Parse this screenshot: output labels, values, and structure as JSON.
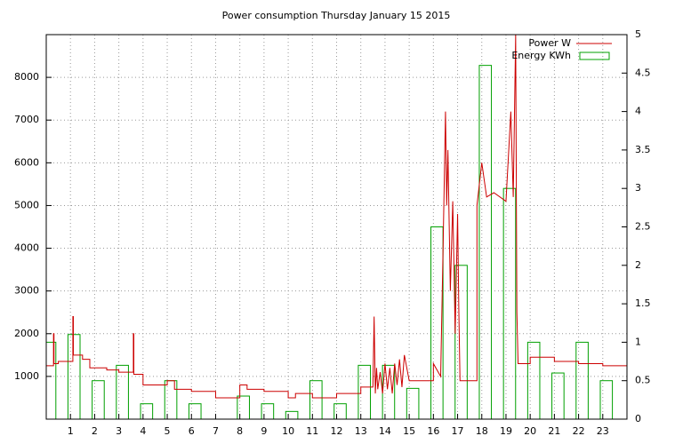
{
  "chart_data": {
    "type": "combo",
    "title": "Power consumption Thursday January 15 2015",
    "xlim": [
      0,
      24
    ],
    "xticks": [
      1,
      2,
      3,
      4,
      5,
      6,
      7,
      8,
      9,
      10,
      11,
      12,
      13,
      14,
      15,
      16,
      17,
      18,
      19,
      20,
      21,
      22,
      23
    ],
    "ylim": [
      0,
      9000
    ],
    "yticks": [
      1000,
      2000,
      3000,
      4000,
      5000,
      6000,
      7000,
      8000
    ],
    "y2lim": [
      0,
      5
    ],
    "y2ticks": [
      0,
      0.5,
      1,
      1.5,
      2,
      2.5,
      3,
      3.5,
      4,
      4.5,
      5
    ],
    "grid": true,
    "legend": "top-right",
    "series": [
      {
        "name": "Power W",
        "color": "#cc0000",
        "type": "line",
        "x": [
          0,
          0.3,
          0.3,
          0.32,
          0.32,
          0.5,
          0.5,
          1.1,
          1.1,
          1.12,
          1.12,
          1.5,
          1.5,
          1.8,
          1.8,
          2.5,
          2.5,
          3,
          3,
          3.6,
          3.6,
          3.62,
          3.62,
          4,
          4,
          5,
          5,
          5.3,
          5.3,
          6,
          6,
          7,
          7,
          8,
          8,
          8.3,
          8.3,
          9,
          9,
          10,
          10,
          10.3,
          10.3,
          11,
          11,
          12,
          12,
          13,
          13,
          13.5,
          13.55,
          13.6,
          13.65,
          13.7,
          13.8,
          13.9,
          14,
          14.1,
          14.2,
          14.3,
          14.4,
          14.5,
          14.6,
          14.7,
          14.8,
          15,
          16,
          16,
          16.3,
          16.4,
          16.5,
          16.55,
          16.6,
          16.7,
          16.8,
          16.9,
          17,
          17.05,
          17.1,
          17.8,
          17.8,
          18,
          18.2,
          18.5,
          19,
          19.2,
          19.3,
          19.4,
          19.45,
          19.5,
          20,
          20,
          21,
          21,
          22,
          22,
          23,
          23,
          24
        ],
        "values": [
          1250,
          1250,
          2000,
          2000,
          1300,
          1300,
          1350,
          1350,
          2400,
          2400,
          1500,
          1500,
          1400,
          1400,
          1200,
          1200,
          1150,
          1150,
          1100,
          1100,
          2000,
          2000,
          1050,
          1050,
          800,
          800,
          900,
          900,
          700,
          700,
          650,
          650,
          500,
          500,
          800,
          800,
          700,
          700,
          650,
          650,
          500,
          500,
          600,
          600,
          500,
          500,
          600,
          600,
          750,
          750,
          2400,
          600,
          1200,
          700,
          1100,
          600,
          1300,
          700,
          1200,
          600,
          1300,
          800,
          1400,
          750,
          1500,
          900,
          900,
          1300,
          1000,
          4000,
          7200,
          5000,
          6300,
          3000,
          5100,
          2000,
          4800,
          2600,
          900,
          900,
          5000,
          6000,
          5200,
          5300,
          5100,
          7200,
          5200,
          9000,
          2500,
          1300,
          1300,
          1450,
          1450,
          1350,
          1350,
          1300,
          1300,
          1250,
          1250
        ]
      },
      {
        "name": "Energy KWh",
        "color": "#00a000",
        "type": "bar",
        "axis": "y2",
        "x": [
          0,
          1,
          2,
          3,
          4,
          5,
          6,
          7,
          8,
          9,
          10,
          11,
          12,
          13,
          14,
          15,
          16,
          17,
          18,
          19,
          20,
          21,
          22,
          23
        ],
        "values": [
          1.0,
          1.1,
          0.5,
          0.7,
          0.2,
          0.5,
          0.2,
          0,
          0.3,
          0.2,
          0.1,
          0.5,
          0.2,
          0.7,
          0.7,
          0.4,
          2.5,
          2.0,
          4.6,
          3.0,
          1.0,
          0.6,
          1.0,
          0.5
        ]
      }
    ]
  }
}
